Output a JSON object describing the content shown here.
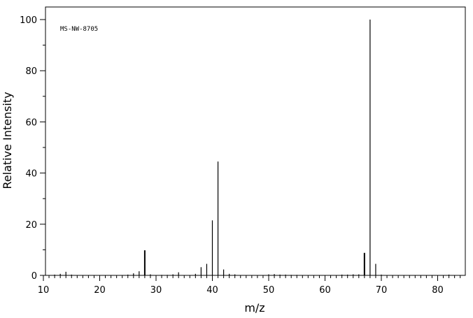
{
  "chart_data": {
    "type": "bar",
    "title": "",
    "annotation": "MS-NW-8705",
    "xlabel": "m/z",
    "ylabel": "Relative Intensity",
    "xlim": [
      10,
      85
    ],
    "ylim": [
      0,
      105
    ],
    "x_major_ticks": [
      10,
      20,
      30,
      40,
      50,
      60,
      70,
      80
    ],
    "x_minor_step": 1,
    "y_major_ticks": [
      0,
      20,
      40,
      60,
      80,
      100
    ],
    "y_minor_step": 10,
    "grid": false,
    "legend": "none",
    "series": [
      {
        "x": [
          12,
          13,
          14,
          15,
          25,
          26,
          27,
          28,
          29,
          31,
          32,
          33,
          34,
          37,
          38,
          39,
          40,
          41,
          42,
          43,
          44,
          50,
          51,
          52,
          53,
          54,
          55,
          63,
          64,
          65,
          66,
          67,
          68,
          69,
          70,
          82
        ],
        "values": [
          0.3,
          0.6,
          1.4,
          0.3,
          0.3,
          0.8,
          1.6,
          9.8,
          0.4,
          0.2,
          0.2,
          0.4,
          1.2,
          0.6,
          3.2,
          4.5,
          21.5,
          44.5,
          2.3,
          0.6,
          0.4,
          0.4,
          0.5,
          0.3,
          0.3,
          0.2,
          0.2,
          0.3,
          0.3,
          0.4,
          0.4,
          8.8,
          100,
          4.5,
          0.3,
          0.3
        ]
      }
    ]
  },
  "colors": {
    "line": "#000000",
    "background": "#ffffff"
  }
}
